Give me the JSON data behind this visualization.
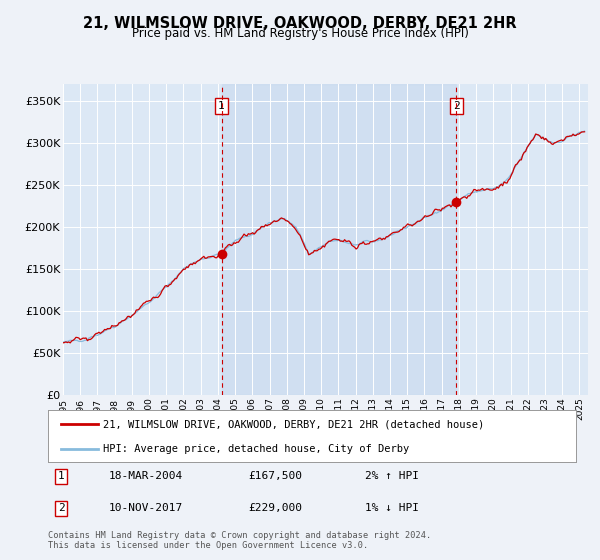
{
  "title": "21, WILMSLOW DRIVE, OAKWOOD, DERBY, DE21 2HR",
  "subtitle": "Price paid vs. HM Land Registry's House Price Index (HPI)",
  "background_color": "#eef2f8",
  "plot_bg_color": "#dce8f5",
  "grid_color": "#ffffff",
  "hpi_line_color": "#88bbdd",
  "price_line_color": "#cc0000",
  "marker_color": "#cc0000",
  "vline_color": "#cc0000",
  "sale1_date_num": 2004.21,
  "sale1_price": 167500,
  "sale1_date_str": "18-MAR-2004",
  "sale1_hpi_pct": "2% ↑ HPI",
  "sale2_date_num": 2017.86,
  "sale2_price": 229000,
  "sale2_date_str": "10-NOV-2017",
  "sale2_hpi_pct": "1% ↓ HPI",
  "xmin": 1995.0,
  "xmax": 2025.5,
  "ymin": 0,
  "ymax": 370000,
  "yticks": [
    0,
    50000,
    100000,
    150000,
    200000,
    250000,
    300000,
    350000
  ],
  "ytick_labels": [
    "£0",
    "£50K",
    "£100K",
    "£150K",
    "£200K",
    "£250K",
    "£300K",
    "£350K"
  ],
  "legend_line1": "21, WILMSLOW DRIVE, OAKWOOD, DERBY, DE21 2HR (detached house)",
  "legend_line2": "HPI: Average price, detached house, City of Derby",
  "footnote": "Contains HM Land Registry data © Crown copyright and database right 2024.\nThis data is licensed under the Open Government Licence v3.0."
}
